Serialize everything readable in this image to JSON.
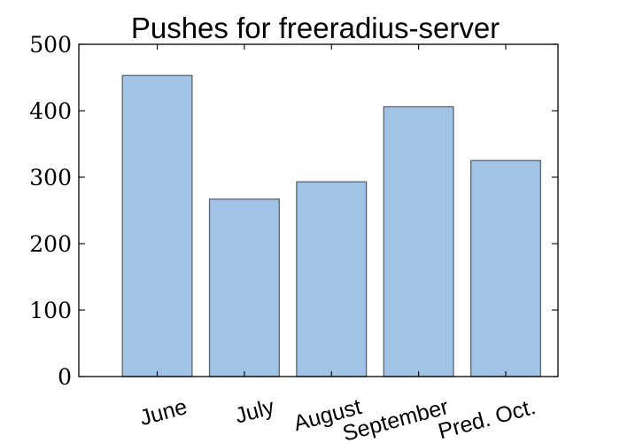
{
  "chart_data": {
    "type": "bar",
    "title": "Pushes for freeradius-server",
    "xlabel": "",
    "ylabel": "",
    "categories": [
      "June",
      "July",
      "August",
      "September",
      "Pred. Oct."
    ],
    "values": [
      453,
      267,
      293,
      406,
      325
    ],
    "ylim": [
      0,
      500
    ],
    "yticks": [
      "0",
      "100",
      "200",
      "300",
      "400",
      "500"
    ],
    "bar_color": "#a1c3e5",
    "edge_color": "#5a6470",
    "grid": false,
    "legend": "none"
  }
}
